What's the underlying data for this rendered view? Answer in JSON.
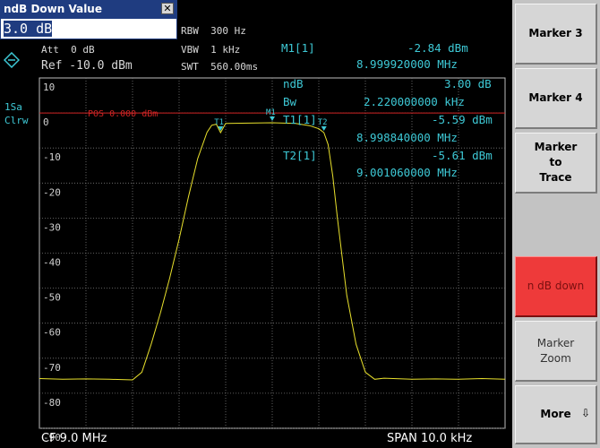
{
  "dialog": {
    "title": "ndB Down Value",
    "value": "3.0 dB",
    "close_glyph": "✕"
  },
  "settings": {
    "rbw": "RBW  300 Hz",
    "vbw": "VBW  1 kHz",
    "swt": "SWT  560.00ms",
    "att": "Att  0 dB",
    "ref": "Ref -10.0 dBm"
  },
  "side_labels": {
    "trace_num": "1Sa",
    "trace_mode": "Clrw"
  },
  "marker_box": {
    "m1_label": "M1[1]",
    "m1_level": "-2.84 dBm",
    "m1_freq": "8.999920000 MHz",
    "ndb_label": "ndB",
    "ndb_value": "3.00 dB",
    "bw_label": "Bw",
    "bw_value": "2.220000000 kHz",
    "t1_label": "T1[1]",
    "t1_level": "-5.59 dBm",
    "t1_freq": "8.998840000 MHz",
    "t2_label": "T2[1]",
    "t2_level": "-5.61 dBm",
    "t2_freq": "9.001060000 MHz"
  },
  "chart_data": {
    "type": "line",
    "y_ticks": [
      "10",
      "0",
      "-10",
      "-20",
      "-30",
      "-40",
      "-50",
      "-60",
      "-70",
      "-80",
      "-90"
    ],
    "ylim": [
      -90,
      10
    ],
    "x_range_kHz": [
      -5,
      5
    ],
    "center_label": "CF 9.0 MHz",
    "span_label": "SPAN 10.0 kHz",
    "ref_line_label": "POS 0.000 dBm",
    "ref_line_level": 0,
    "marker_tags": [
      "T1",
      "M1",
      "T2"
    ],
    "series": [
      {
        "x": [
          -5.0,
          -4.5,
          -4.0,
          -3.5,
          -3.0,
          -2.8,
          -2.6,
          -2.4,
          -2.2,
          -2.0,
          -1.8,
          -1.6,
          -1.4,
          -1.3,
          -1.2,
          -1.11,
          -1.0,
          -0.5,
          0.0,
          0.5,
          0.8,
          1.0,
          1.11,
          1.2,
          1.3,
          1.4,
          1.6,
          1.8,
          2.0,
          2.2,
          2.4,
          2.6,
          3.0,
          3.5,
          4.0,
          4.5,
          5.0
        ],
        "y": [
          -75.8,
          -76.0,
          -75.9,
          -76.0,
          -76.2,
          -74.0,
          -66.0,
          -57.0,
          -47.0,
          -36.0,
          -24.0,
          -13.0,
          -5.5,
          -3.5,
          -3.2,
          -5.6,
          -3.0,
          -2.9,
          -2.8,
          -3.0,
          -3.6,
          -4.5,
          -5.6,
          -9.0,
          -18.0,
          -30.0,
          -52.0,
          -66.0,
          -74.0,
          -76.0,
          -75.7,
          -75.8,
          -76.0,
          -75.9,
          -76.0,
          -75.8,
          -76.0
        ]
      }
    ]
  },
  "softkeys": {
    "marker3": "Marker 3",
    "marker4": "Marker 4",
    "marker_to_trace": "Marker\nto\nTrace",
    "n_db_down": "n dB down",
    "marker_zoom": "Marker\nZoom",
    "more": "More"
  },
  "colors": {
    "trace": "#e8e02c",
    "ref_line": "#d02424",
    "grid": "#7a7a7a",
    "readout": "#3ec9d6",
    "active_key": "#ee3a3a"
  }
}
